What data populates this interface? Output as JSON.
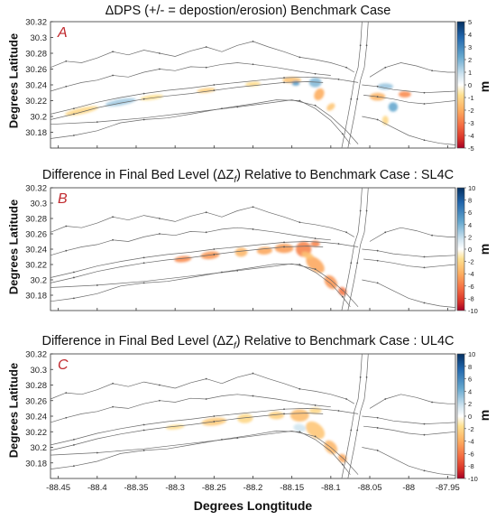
{
  "chart_data": [
    {
      "type": "heatmap",
      "panel_letter": "A",
      "title": "ΔDPS (+/- = depostion/erosion) Benchmark Case",
      "ylabel": "Degrees Latitude",
      "xlim": [
        -88.46,
        -87.94
      ],
      "ylim": [
        30.16,
        30.32
      ],
      "yticks": [
        30.18,
        30.2,
        30.22,
        30.24,
        30.26,
        30.28,
        30.3,
        30.32
      ],
      "colorbar": {
        "unit": "m",
        "min": -5,
        "max": 5,
        "ticks": [
          5,
          4,
          3,
          2,
          1,
          0,
          -1,
          -2,
          -3,
          -4,
          -5
        ]
      }
    },
    {
      "type": "heatmap",
      "panel_letter": "B",
      "title": "Difference in Final Bed Level (ΔZ",
      "title_subscript": "f",
      "title_suffix": ") Relative to Benchmark Case : SL4C",
      "ylabel": "Degrees Latitude",
      "xlim": [
        -88.46,
        -87.94
      ],
      "ylim": [
        30.16,
        30.32
      ],
      "yticks": [
        30.18,
        30.2,
        30.22,
        30.24,
        30.26,
        30.28,
        30.3,
        30.32
      ],
      "colorbar": {
        "unit": "m",
        "min": -10,
        "max": 10,
        "ticks": [
          10,
          8,
          6,
          4,
          2,
          0,
          -2,
          -4,
          -6,
          -8,
          -10
        ]
      }
    },
    {
      "type": "heatmap",
      "panel_letter": "C",
      "title": "Difference in Final Bed Level (ΔZ",
      "title_subscript": "f",
      "title_suffix": ") Relative to Benchmark Case : UL4C",
      "ylabel": "Degrees Latitude",
      "xlabel": "Degrees Longtitude",
      "xlim": [
        -88.46,
        -87.94
      ],
      "ylim": [
        30.16,
        30.32
      ],
      "yticks": [
        30.18,
        30.2,
        30.22,
        30.24,
        30.26,
        30.28,
        30.3,
        30.32
      ],
      "xticks": [
        -88.45,
        -88.4,
        -88.35,
        -88.3,
        -88.25,
        -88.2,
        -88.15,
        -88.1,
        -88.05,
        -88,
        -87.95
      ],
      "colorbar": {
        "unit": "m",
        "min": -10,
        "max": 10,
        "ticks": [
          10,
          8,
          6,
          4,
          2,
          0,
          -2,
          -4,
          -6,
          -8,
          -10
        ]
      }
    }
  ],
  "colors": {
    "panel_letter": "#c0282d",
    "deposition": "#2166ac",
    "erosion": "#b2182b",
    "neutral": "#ffffff"
  }
}
